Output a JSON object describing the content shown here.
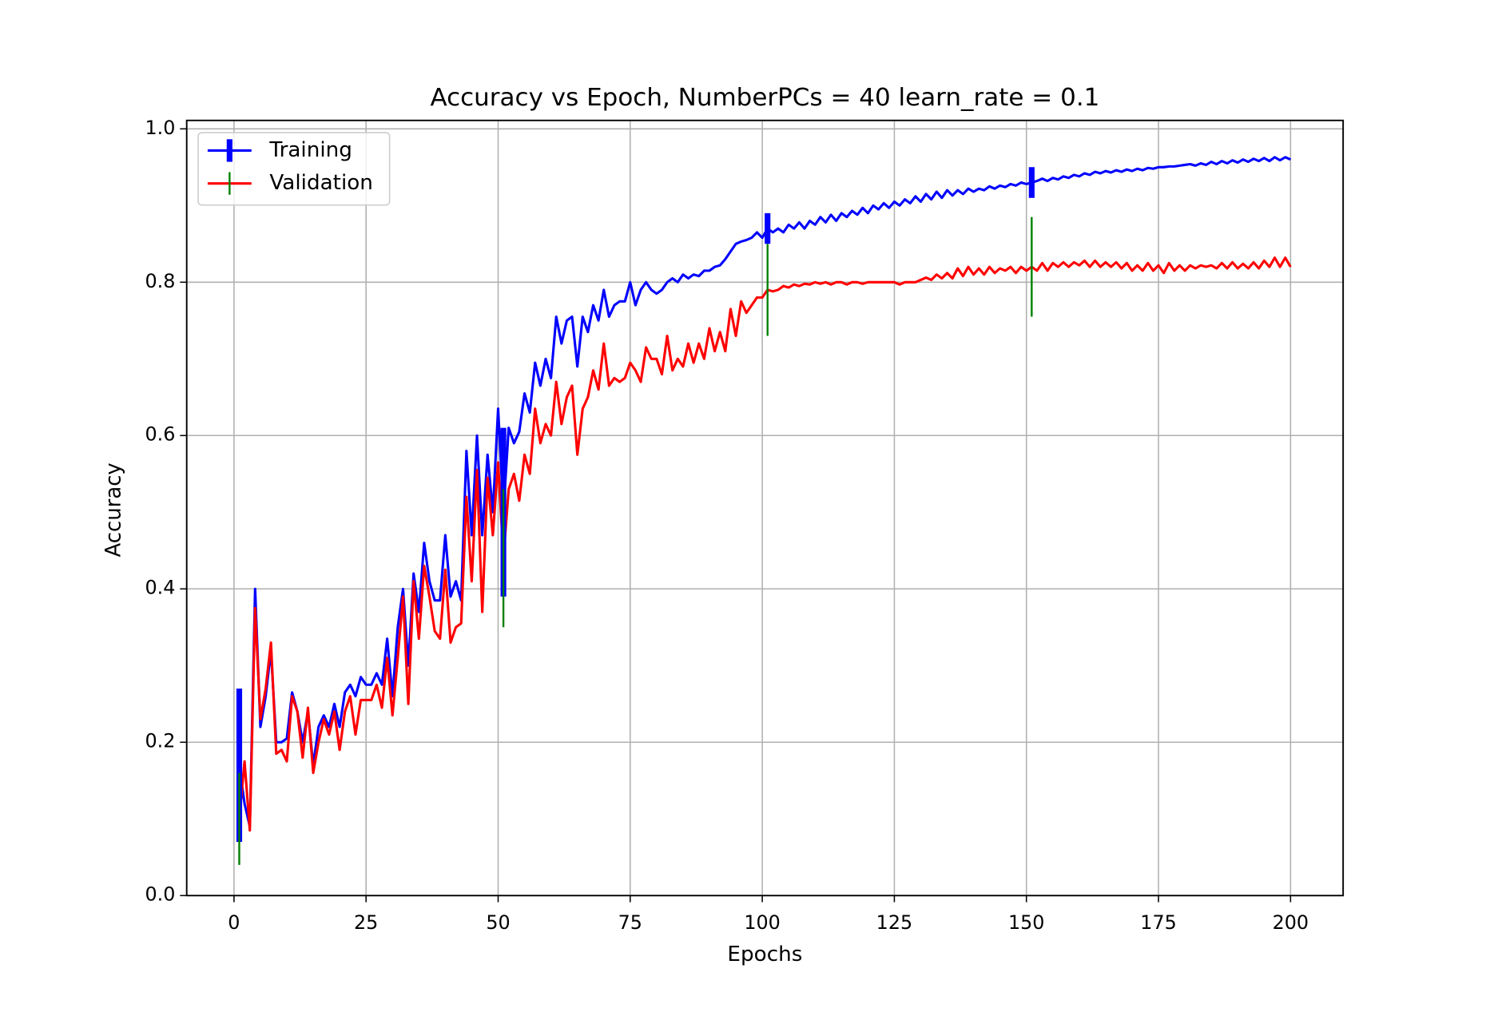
{
  "chart_data": {
    "type": "line",
    "title": "Accuracy vs Epoch, NumberPCs = 40 learn_rate = 0.1",
    "xlabel": "Epochs",
    "ylabel": "Accuracy",
    "x": [
      1,
      2,
      3,
      4,
      5,
      6,
      7,
      8,
      9,
      10,
      11,
      12,
      13,
      14,
      15,
      16,
      17,
      18,
      19,
      20,
      21,
      22,
      23,
      24,
      25,
      26,
      27,
      28,
      29,
      30,
      31,
      32,
      33,
      34,
      35,
      36,
      37,
      38,
      39,
      40,
      41,
      42,
      43,
      44,
      45,
      46,
      47,
      48,
      49,
      50,
      51,
      52,
      53,
      54,
      55,
      56,
      57,
      58,
      59,
      60,
      61,
      62,
      63,
      64,
      65,
      66,
      67,
      68,
      69,
      70,
      71,
      72,
      73,
      74,
      75,
      76,
      77,
      78,
      79,
      80,
      81,
      82,
      83,
      84,
      85,
      86,
      87,
      88,
      89,
      90,
      91,
      92,
      93,
      94,
      95,
      96,
      97,
      98,
      99,
      100,
      101,
      102,
      103,
      104,
      105,
      106,
      107,
      108,
      109,
      110,
      111,
      112,
      113,
      114,
      115,
      116,
      117,
      118,
      119,
      120,
      121,
      122,
      123,
      124,
      125,
      126,
      127,
      128,
      129,
      130,
      131,
      132,
      133,
      134,
      135,
      136,
      137,
      138,
      139,
      140,
      141,
      142,
      143,
      144,
      145,
      146,
      147,
      148,
      149,
      150,
      151,
      152,
      153,
      154,
      155,
      156,
      157,
      158,
      159,
      160,
      161,
      162,
      163,
      164,
      165,
      166,
      167,
      168,
      169,
      170,
      171,
      172,
      173,
      174,
      175,
      176,
      177,
      178,
      179,
      180,
      181,
      182,
      183,
      184,
      185,
      186,
      187,
      188,
      189,
      190,
      191,
      192,
      193,
      194,
      195,
      196,
      197,
      198,
      199,
      200
    ],
    "series": [
      {
        "name": "Training",
        "color": "#0000ff",
        "ecolor": "#0000ff",
        "values": [
          0.17,
          0.12,
          0.09,
          0.4,
          0.22,
          0.26,
          0.32,
          0.2,
          0.2,
          0.205,
          0.265,
          0.24,
          0.2,
          0.24,
          0.17,
          0.22,
          0.235,
          0.22,
          0.25,
          0.22,
          0.265,
          0.275,
          0.26,
          0.285,
          0.275,
          0.275,
          0.29,
          0.275,
          0.335,
          0.26,
          0.35,
          0.4,
          0.3,
          0.42,
          0.37,
          0.46,
          0.41,
          0.385,
          0.385,
          0.47,
          0.39,
          0.41,
          0.385,
          0.58,
          0.47,
          0.6,
          0.47,
          0.575,
          0.5,
          0.635,
          0.5,
          0.61,
          0.59,
          0.605,
          0.655,
          0.63,
          0.695,
          0.665,
          0.7,
          0.675,
          0.755,
          0.72,
          0.75,
          0.755,
          0.69,
          0.755,
          0.735,
          0.77,
          0.75,
          0.79,
          0.755,
          0.77,
          0.775,
          0.775,
          0.8,
          0.77,
          0.79,
          0.8,
          0.79,
          0.785,
          0.79,
          0.8,
          0.805,
          0.8,
          0.81,
          0.805,
          0.81,
          0.808,
          0.815,
          0.815,
          0.82,
          0.822,
          0.83,
          0.84,
          0.85,
          0.853,
          0.855,
          0.858,
          0.865,
          0.858,
          0.87,
          0.865,
          0.87,
          0.865,
          0.875,
          0.87,
          0.878,
          0.87,
          0.88,
          0.875,
          0.885,
          0.878,
          0.888,
          0.88,
          0.89,
          0.885,
          0.893,
          0.888,
          0.897,
          0.89,
          0.9,
          0.895,
          0.903,
          0.897,
          0.905,
          0.9,
          0.908,
          0.903,
          0.912,
          0.905,
          0.915,
          0.908,
          0.918,
          0.91,
          0.92,
          0.913,
          0.92,
          0.915,
          0.922,
          0.918,
          0.922,
          0.92,
          0.925,
          0.922,
          0.926,
          0.924,
          0.928,
          0.926,
          0.93,
          0.928,
          0.93,
          0.932,
          0.935,
          0.932,
          0.936,
          0.934,
          0.938,
          0.936,
          0.94,
          0.938,
          0.942,
          0.94,
          0.944,
          0.942,
          0.945,
          0.943,
          0.946,
          0.944,
          0.947,
          0.945,
          0.948,
          0.946,
          0.949,
          0.948,
          0.95,
          0.95,
          0.951,
          0.951,
          0.952,
          0.953,
          0.954,
          0.952,
          0.955,
          0.953,
          0.957,
          0.954,
          0.958,
          0.955,
          0.959,
          0.956,
          0.96,
          0.957,
          0.961,
          0.958,
          0.962,
          0.958,
          0.963,
          0.959,
          0.963,
          0.96
        ],
        "error_epochs": [
          1,
          51,
          101,
          151
        ],
        "errors": [
          0.1,
          0.11,
          0.02,
          0.02
        ]
      },
      {
        "name": "Validation",
        "color": "#ff0000",
        "ecolor": "#008000",
        "values": [
          0.1,
          0.175,
          0.085,
          0.375,
          0.23,
          0.27,
          0.33,
          0.185,
          0.19,
          0.175,
          0.26,
          0.24,
          0.18,
          0.245,
          0.16,
          0.2,
          0.23,
          0.21,
          0.24,
          0.19,
          0.24,
          0.26,
          0.21,
          0.255,
          0.255,
          0.255,
          0.275,
          0.245,
          0.31,
          0.235,
          0.31,
          0.39,
          0.25,
          0.41,
          0.335,
          0.43,
          0.39,
          0.345,
          0.335,
          0.425,
          0.33,
          0.35,
          0.355,
          0.52,
          0.41,
          0.555,
          0.37,
          0.545,
          0.47,
          0.565,
          0.44,
          0.53,
          0.55,
          0.515,
          0.575,
          0.55,
          0.635,
          0.59,
          0.615,
          0.6,
          0.67,
          0.615,
          0.65,
          0.665,
          0.575,
          0.635,
          0.65,
          0.685,
          0.66,
          0.72,
          0.665,
          0.675,
          0.67,
          0.675,
          0.695,
          0.685,
          0.67,
          0.715,
          0.7,
          0.7,
          0.68,
          0.73,
          0.685,
          0.7,
          0.69,
          0.72,
          0.695,
          0.72,
          0.7,
          0.74,
          0.71,
          0.735,
          0.71,
          0.765,
          0.73,
          0.775,
          0.76,
          0.77,
          0.78,
          0.78,
          0.79,
          0.788,
          0.79,
          0.795,
          0.793,
          0.797,
          0.795,
          0.798,
          0.797,
          0.8,
          0.798,
          0.8,
          0.797,
          0.8,
          0.8,
          0.797,
          0.8,
          0.8,
          0.798,
          0.8,
          0.8,
          0.8,
          0.8,
          0.8,
          0.8,
          0.797,
          0.8,
          0.8,
          0.8,
          0.803,
          0.806,
          0.803,
          0.81,
          0.805,
          0.812,
          0.805,
          0.818,
          0.808,
          0.82,
          0.81,
          0.818,
          0.81,
          0.82,
          0.812,
          0.818,
          0.815,
          0.82,
          0.812,
          0.82,
          0.815,
          0.82,
          0.815,
          0.825,
          0.815,
          0.825,
          0.82,
          0.826,
          0.82,
          0.826,
          0.822,
          0.828,
          0.82,
          0.828,
          0.82,
          0.826,
          0.82,
          0.826,
          0.818,
          0.825,
          0.815,
          0.822,
          0.815,
          0.825,
          0.815,
          0.822,
          0.812,
          0.825,
          0.815,
          0.822,
          0.815,
          0.822,
          0.818,
          0.822,
          0.82,
          0.822,
          0.818,
          0.825,
          0.818,
          0.826,
          0.818,
          0.824,
          0.818,
          0.826,
          0.818,
          0.828,
          0.82,
          0.832,
          0.82,
          0.832,
          0.82
        ],
        "error_epochs": [
          1,
          51,
          101,
          151
        ],
        "errors": [
          0.06,
          0.09,
          0.06,
          0.065
        ]
      }
    ],
    "xlim": [
      -8.95,
      209.95
    ],
    "xticks": [
      0,
      25,
      50,
      75,
      100,
      125,
      150,
      175,
      200
    ],
    "ylim": [
      0,
      1.011
    ],
    "yticks": [
      {
        "value": 0,
        "label": "0.0"
      },
      {
        "value": 0.2,
        "label": "0.2"
      },
      {
        "value": 0.4,
        "label": "0.4"
      },
      {
        "value": 0.6,
        "label": "0.6"
      },
      {
        "value": 0.8,
        "label": "0.8"
      },
      {
        "value": 1,
        "label": "1.0"
      }
    ],
    "grid": true,
    "legend": "upper left"
  }
}
